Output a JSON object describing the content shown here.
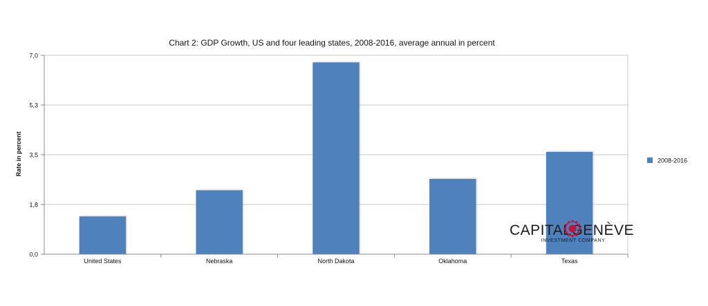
{
  "chart_data": {
    "type": "bar",
    "title": "Chart 2: GDP Growth, US and four leading states, 2008-2016, average annual in percent",
    "xlabel": "",
    "ylabel": "Rate in percent",
    "categories": [
      "United States",
      "Nebraska",
      "North Dakota",
      "Oklahoma",
      "Texas"
    ],
    "series": [
      {
        "name": "2008-2016",
        "values": [
          1.33,
          2.25,
          6.75,
          2.65,
          3.6
        ],
        "color": "#4f81bd"
      }
    ],
    "ylim": [
      0,
      7.0
    ],
    "yticks": [
      0.0,
      1.75,
      3.5,
      5.25,
      7.0
    ],
    "ytick_labels": [
      "0,0",
      "1,8",
      "3,5",
      "5,3",
      "7,0"
    ],
    "grid": true,
    "legend": "right"
  },
  "watermark": {
    "brand": "CAPITAL GENÈVE",
    "tagline": "INVESTMENT COMPANY",
    "color": "#1a1a1a",
    "emblem_color": "#c0143c"
  }
}
